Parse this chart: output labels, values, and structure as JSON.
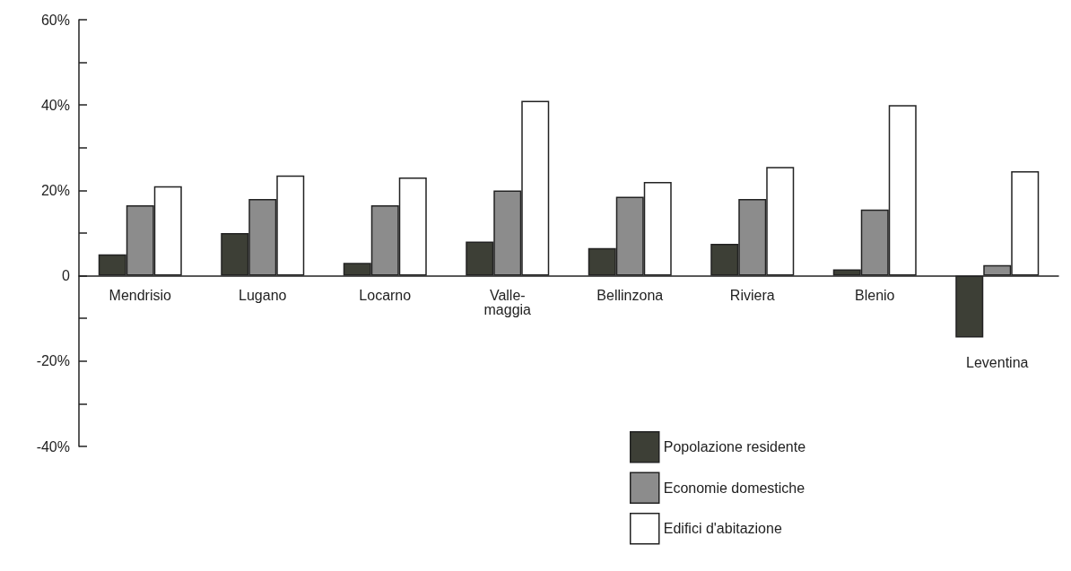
{
  "chart_data": {
    "type": "bar",
    "categories": [
      "Mendrisio",
      "Lugano",
      "Locarno",
      "Valle-maggia",
      "Bellinzona",
      "Riviera",
      "Blenio",
      "Leventina"
    ],
    "series": [
      {
        "name": "Popolazione residente",
        "color": "#3d3f36",
        "values": [
          5,
          10,
          3,
          8,
          6.5,
          7.5,
          1.5,
          -14.5
        ]
      },
      {
        "name": "Economie domestiche",
        "color": "#8c8c8c",
        "values": [
          16.5,
          18,
          16.5,
          20,
          18.5,
          18,
          15.5,
          2.5
        ]
      },
      {
        "name": "Edifici d'abitazione",
        "color": "#ffffff",
        "values": [
          21,
          23.5,
          23,
          41,
          22,
          25.5,
          40,
          24.5
        ]
      }
    ],
    "ylim": [
      -40,
      60
    ],
    "yticks": [
      {
        "value": -40,
        "label": "-40%"
      },
      {
        "value": -30,
        "label": null
      },
      {
        "value": -20,
        "label": "-20%"
      },
      {
        "value": -10,
        "label": null
      },
      0,
      {
        "value": 10,
        "label": null
      },
      {
        "value": 20,
        "label": "20%"
      },
      {
        "value": 30,
        "label": null
      },
      {
        "value": 40,
        "label": "40%"
      },
      {
        "value": 50,
        "label": null
      },
      {
        "value": 60,
        "label": "60%"
      }
    ],
    "grid": false,
    "legend": "bottom right"
  }
}
